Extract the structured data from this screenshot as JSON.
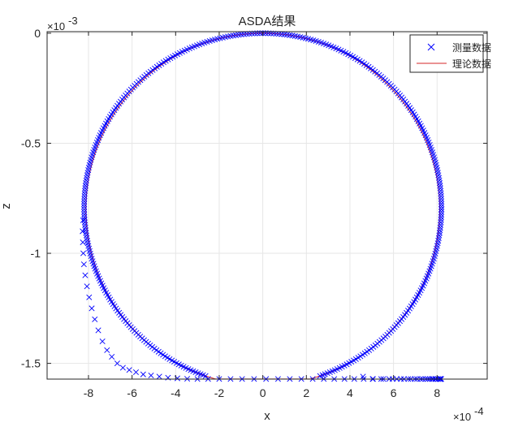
{
  "chart_data": {
    "type": "scatter",
    "title": "ASDA结果",
    "xlabel": "x",
    "ylabel": "z",
    "x_exponent": {
      "base": "×10",
      "power": "-4"
    },
    "y_exponent": {
      "base": "×10",
      "power": "-3"
    },
    "xlim": [
      -9.9,
      10.3
    ],
    "ylim": [
      -1.5715,
      0.007
    ],
    "x_ticks": [
      -8,
      -6,
      -4,
      -2,
      0,
      2,
      4,
      6,
      8
    ],
    "x_tick_labels": [
      "-8",
      "-6",
      "-4",
      "-2",
      "0",
      "2",
      "4",
      "6",
      "8"
    ],
    "y_ticks": [
      0,
      -0.5,
      -1,
      -1.5
    ],
    "y_tick_labels": [
      "0",
      "-0.5",
      "-1",
      "-1.5"
    ],
    "grid": true,
    "legend": {
      "position": "top-right"
    },
    "series": [
      {
        "name": "测量数据",
        "marker": "x",
        "color": "#0000ff",
        "x": [
          -8.25,
          -8.27,
          -8.26,
          -8.24,
          -8.21,
          -8.15,
          -8.07,
          -7.97,
          -7.85,
          -7.71,
          -7.55,
          -7.36,
          -7.15,
          -6.93,
          -6.68,
          -6.42,
          -6.13,
          -5.82,
          -5.49,
          -5.13,
          -4.75,
          -4.35,
          -3.92,
          -3.47,
          -3.0,
          -2.51,
          -2.0,
          -1.48,
          -0.95,
          -0.4,
          0.15,
          0.7,
          1.24,
          1.77,
          2.29,
          2.8,
          3.28,
          3.75,
          4.2,
          4.63,
          5.04,
          5.43,
          5.8,
          6.15,
          6.48,
          6.79,
          7.08,
          7.34,
          7.57,
          7.76,
          7.92,
          8.04,
          8.12,
          8.17,
          8.19,
          8.18,
          8.16,
          8.12,
          8.05,
          7.95,
          7.82,
          7.66,
          7.47,
          7.24,
          6.98,
          6.68,
          6.34,
          5.96,
          5.53,
          5.06,
          4.6
        ],
        "y": [
          -0.85,
          -0.9,
          -0.95,
          -1.0,
          -1.05,
          -1.1,
          -1.15,
          -1.2,
          -1.25,
          -1.3,
          -1.35,
          -1.4,
          -1.44,
          -1.47,
          -1.5,
          -1.52,
          -1.53,
          -1.54,
          -1.55,
          -1.555,
          -1.56,
          -1.565,
          -1.568,
          -1.57,
          -1.571,
          -1.571,
          -1.571,
          -1.571,
          -1.571,
          -1.571,
          -1.571,
          -1.571,
          -1.571,
          -1.571,
          -1.571,
          -1.571,
          -1.571,
          -1.571,
          -1.571,
          -1.571,
          -1.571,
          -1.571,
          -1.571,
          -1.571,
          -1.571,
          -1.571,
          -1.571,
          -1.571,
          -1.571,
          -1.571,
          -1.571,
          -1.571,
          -1.571,
          -1.571,
          -1.571,
          -1.571,
          -1.571,
          -1.571,
          -1.571,
          -1.571,
          -1.571,
          -1.571,
          -1.571,
          -1.571,
          -1.571,
          -1.571,
          -1.571,
          -1.571,
          -1.571,
          -1.571,
          -1.56
        ]
      },
      {
        "name": "理论数据",
        "line": "solid",
        "color": "#d62728",
        "center": [
          0,
          -0.8
        ],
        "radius_x": 8.12,
        "radius_z": 0.8
      }
    ]
  }
}
